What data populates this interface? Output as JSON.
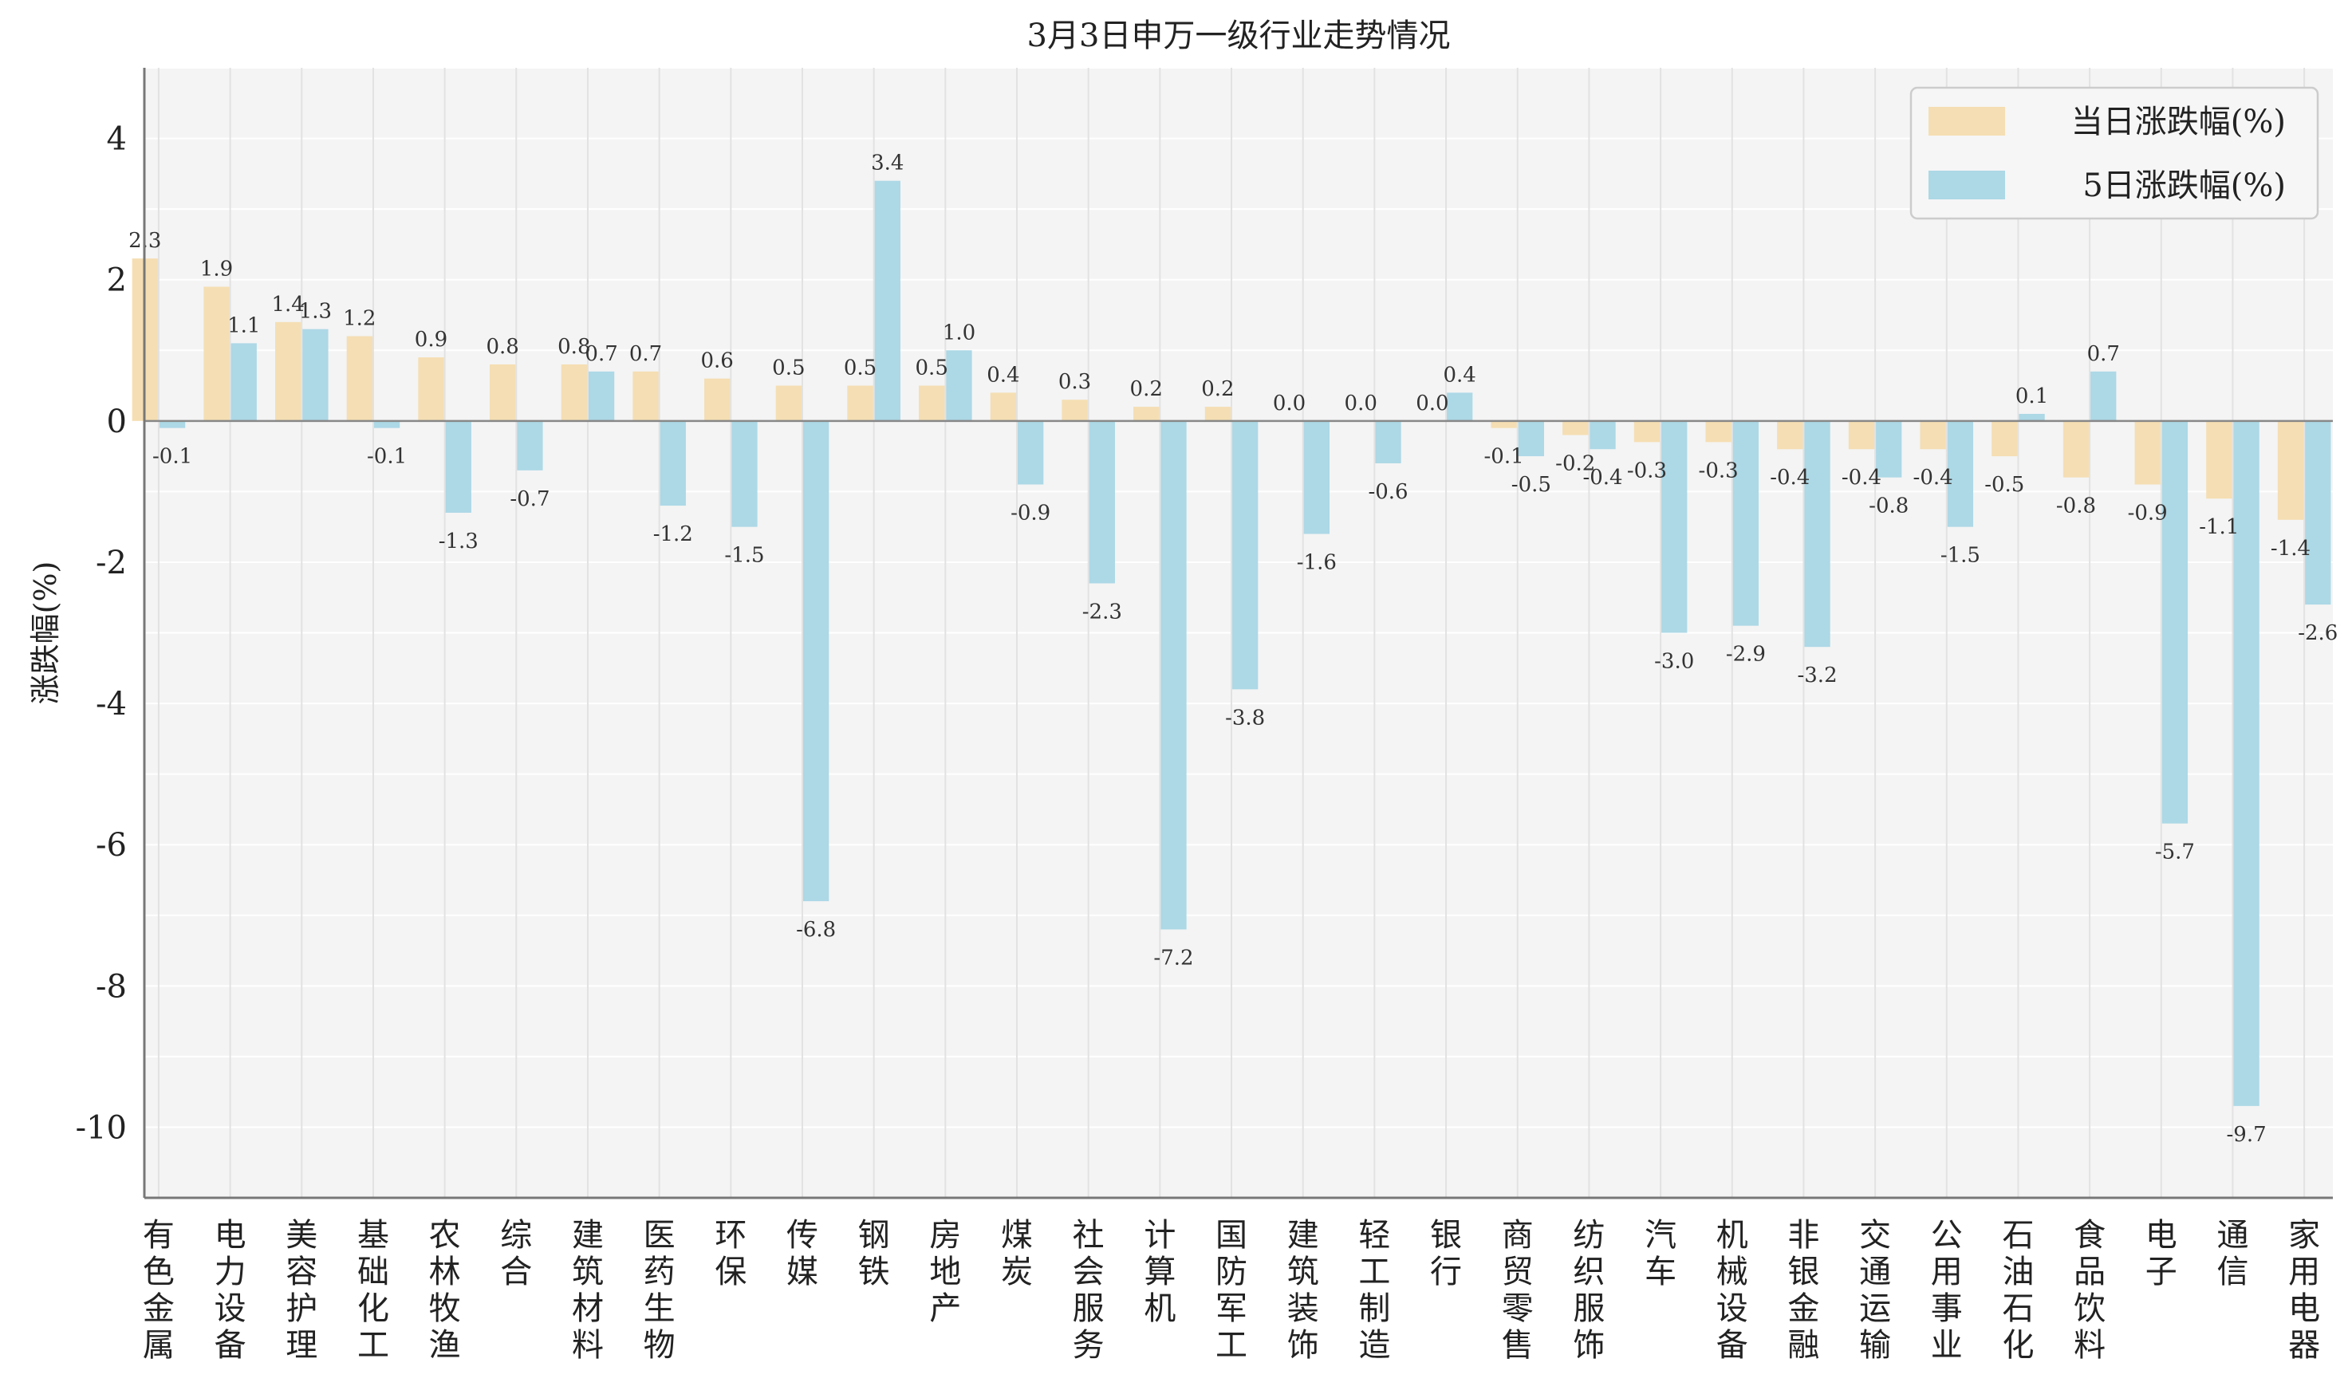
{
  "chart_data": {
    "type": "bar",
    "title": "3月3日申万一级行业走势情况",
    "ylabel": "涨跌幅(%)",
    "xlabel": "",
    "ylim": [
      -11,
      5
    ],
    "yticks": [
      4,
      2,
      0,
      -2,
      -4,
      -6,
      -8,
      -10
    ],
    "grid": true,
    "legend_position": "top-right",
    "categories": [
      "有色金属",
      "电力设备",
      "美容护理",
      "基础化工",
      "农林牧渔",
      "综合",
      "建筑材料",
      "医药生物",
      "环保",
      "传媒",
      "钢铁",
      "房地产",
      "煤炭",
      "社会服务",
      "计算机",
      "国防军工",
      "建筑装饰",
      "轻工制造",
      "银行",
      "商贸零售",
      "纺织服饰",
      "汽车",
      "机械设备",
      "非银金融",
      "交通运输",
      "公用事业",
      "石油石化",
      "食品饮料",
      "电子",
      "通信",
      "家用电器"
    ],
    "series": [
      {
        "name": "当日涨跌幅(%)",
        "color": "#f5deb3",
        "values": [
          2.3,
          1.9,
          1.4,
          1.2,
          0.9,
          0.8,
          0.8,
          0.7,
          0.6,
          0.5,
          0.5,
          0.5,
          0.4,
          0.3,
          0.2,
          0.2,
          0.0,
          0.0,
          0.0,
          -0.1,
          -0.2,
          -0.3,
          -0.3,
          -0.4,
          -0.4,
          -0.4,
          -0.5,
          -0.8,
          -0.9,
          -1.1,
          -1.4
        ]
      },
      {
        "name": "5日涨跌幅(%)",
        "color": "#add8e6",
        "values": [
          -0.1,
          1.1,
          1.3,
          -0.1,
          -1.3,
          -0.7,
          0.7,
          -1.2,
          -1.5,
          -6.8,
          3.4,
          1.0,
          -0.9,
          -2.3,
          -7.2,
          -3.8,
          -1.6,
          -0.6,
          0.4,
          -0.5,
          -0.4,
          -3.0,
          -2.9,
          -3.2,
          -0.8,
          -1.5,
          0.1,
          0.7,
          -5.7,
          -9.7,
          -2.6
        ]
      }
    ]
  }
}
